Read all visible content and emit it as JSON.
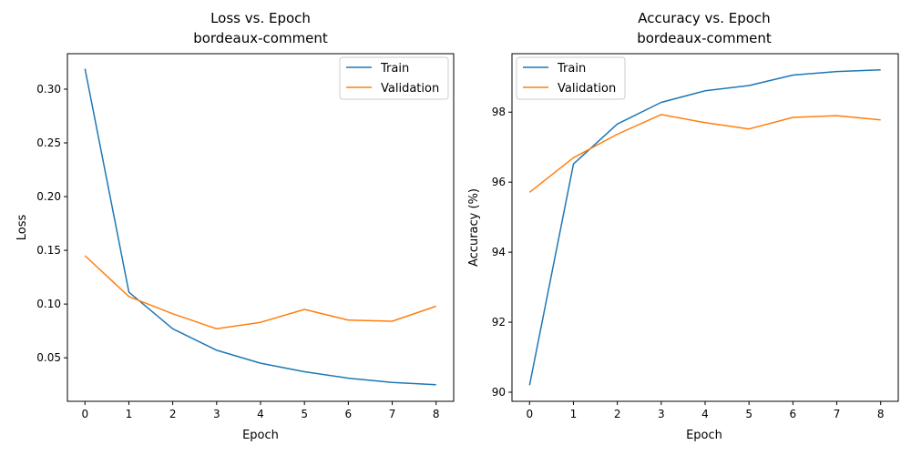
{
  "chart_data": [
    {
      "type": "line",
      "title": "Loss vs. Epoch",
      "subtitle": "bordeaux-comment",
      "xlabel": "Epoch",
      "ylabel": "Loss",
      "x": [
        0,
        1,
        2,
        3,
        4,
        5,
        6,
        7,
        8
      ],
      "xticks": [
        "0",
        "1",
        "2",
        "3",
        "4",
        "5",
        "6",
        "7",
        "8"
      ],
      "yticks": [
        "0.05",
        "0.10",
        "0.15",
        "0.20",
        "0.25",
        "0.30"
      ],
      "xlim": [
        -0.4,
        8.4
      ],
      "ylim": [
        0.0095,
        0.333
      ],
      "grid": false,
      "legend": "top-right",
      "series": [
        {
          "name": "Train",
          "color": "#1f77b4",
          "values": [
            0.319,
            0.111,
            0.077,
            0.057,
            0.045,
            0.037,
            0.031,
            0.027,
            0.025
          ]
        },
        {
          "name": "Validation",
          "color": "#ff7f0e",
          "values": [
            0.145,
            0.107,
            0.091,
            0.077,
            0.083,
            0.095,
            0.085,
            0.084,
            0.098
          ]
        }
      ]
    },
    {
      "type": "line",
      "title": "Accuracy vs. Epoch",
      "subtitle": "bordeaux-comment",
      "xlabel": "Epoch",
      "ylabel": "Accuracy (%)",
      "x": [
        0,
        1,
        2,
        3,
        4,
        5,
        6,
        7,
        8
      ],
      "xticks": [
        "0",
        "1",
        "2",
        "3",
        "4",
        "5",
        "6",
        "7",
        "8"
      ],
      "yticks": [
        "90",
        "92",
        "94",
        "96",
        "98"
      ],
      "xlim": [
        -0.4,
        8.4
      ],
      "ylim": [
        89.74,
        99.67
      ],
      "grid": false,
      "legend": "top-left",
      "series": [
        {
          "name": "Train",
          "color": "#1f77b4",
          "values": [
            90.2,
            96.52,
            97.66,
            98.28,
            98.61,
            98.76,
            99.06,
            99.16,
            99.21
          ]
        },
        {
          "name": "Validation",
          "color": "#ff7f0e",
          "values": [
            95.71,
            96.7,
            97.37,
            97.93,
            97.7,
            97.52,
            97.85,
            97.9,
            97.78
          ]
        }
      ]
    }
  ]
}
